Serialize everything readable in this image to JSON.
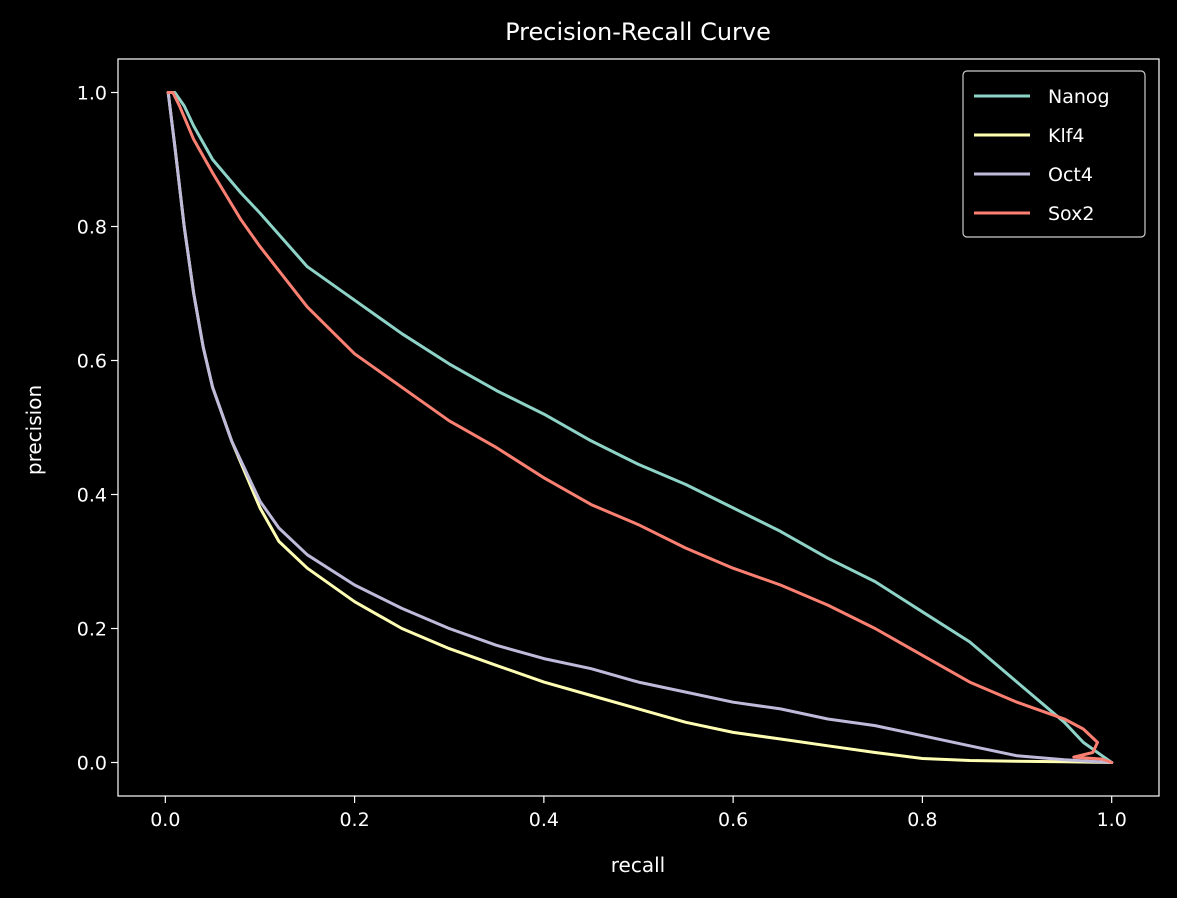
{
  "chart_data": {
    "type": "line",
    "title": "Precision-Recall Curve",
    "xlabel": "recall",
    "ylabel": "precision",
    "xlim": [
      -0.05,
      1.05
    ],
    "ylim": [
      -0.05,
      1.05
    ],
    "xticks": [
      "0.0",
      "0.2",
      "0.4",
      "0.6",
      "0.8",
      "1.0"
    ],
    "yticks": [
      "0.0",
      "0.2",
      "0.4",
      "0.6",
      "0.8",
      "1.0"
    ],
    "grid": false,
    "legend_position": "top-right",
    "background": "#000000",
    "series": [
      {
        "name": "Nanog",
        "color": "#8dd3c7",
        "x": [
          0.003,
          0.01,
          0.02,
          0.03,
          0.05,
          0.08,
          0.1,
          0.15,
          0.2,
          0.25,
          0.3,
          0.35,
          0.4,
          0.45,
          0.5,
          0.55,
          0.6,
          0.65,
          0.7,
          0.75,
          0.8,
          0.85,
          0.9,
          0.95,
          0.97,
          0.99,
          1.0
        ],
        "y": [
          1.0,
          1.0,
          0.98,
          0.95,
          0.9,
          0.85,
          0.82,
          0.74,
          0.69,
          0.64,
          0.595,
          0.555,
          0.52,
          0.48,
          0.445,
          0.415,
          0.38,
          0.345,
          0.305,
          0.27,
          0.225,
          0.18,
          0.12,
          0.06,
          0.03,
          0.01,
          0.0
        ]
      },
      {
        "name": "Klf4",
        "color": "#ffffb3",
        "x": [
          0.003,
          0.01,
          0.02,
          0.03,
          0.04,
          0.05,
          0.07,
          0.1,
          0.12,
          0.15,
          0.2,
          0.25,
          0.3,
          0.35,
          0.4,
          0.45,
          0.5,
          0.55,
          0.6,
          0.65,
          0.7,
          0.75,
          0.8,
          0.85,
          0.9,
          0.95,
          1.0
        ],
        "y": [
          1.0,
          0.92,
          0.8,
          0.7,
          0.62,
          0.56,
          0.48,
          0.38,
          0.33,
          0.29,
          0.24,
          0.2,
          0.17,
          0.145,
          0.12,
          0.1,
          0.08,
          0.06,
          0.045,
          0.035,
          0.025,
          0.015,
          0.006,
          0.003,
          0.002,
          0.001,
          0.0
        ]
      },
      {
        "name": "Oct4",
        "color": "#bebada",
        "x": [
          0.003,
          0.01,
          0.02,
          0.03,
          0.04,
          0.05,
          0.07,
          0.1,
          0.12,
          0.15,
          0.2,
          0.25,
          0.3,
          0.35,
          0.4,
          0.45,
          0.5,
          0.55,
          0.6,
          0.65,
          0.7,
          0.75,
          0.8,
          0.85,
          0.9,
          0.95,
          1.0
        ],
        "y": [
          1.0,
          0.92,
          0.8,
          0.7,
          0.62,
          0.56,
          0.48,
          0.39,
          0.35,
          0.31,
          0.265,
          0.23,
          0.2,
          0.175,
          0.155,
          0.14,
          0.12,
          0.105,
          0.09,
          0.08,
          0.065,
          0.055,
          0.04,
          0.025,
          0.01,
          0.004,
          0.0
        ]
      },
      {
        "name": "Sox2",
        "color": "#fb8072",
        "x": [
          0.003,
          0.008,
          0.015,
          0.03,
          0.05,
          0.08,
          0.1,
          0.15,
          0.2,
          0.25,
          0.3,
          0.35,
          0.4,
          0.45,
          0.5,
          0.55,
          0.6,
          0.65,
          0.7,
          0.75,
          0.8,
          0.85,
          0.9,
          0.93,
          0.95,
          0.97,
          0.985,
          0.98,
          0.96,
          0.99,
          1.0
        ],
        "y": [
          1.0,
          1.0,
          0.98,
          0.93,
          0.88,
          0.81,
          0.77,
          0.68,
          0.61,
          0.56,
          0.51,
          0.47,
          0.425,
          0.385,
          0.355,
          0.32,
          0.29,
          0.265,
          0.235,
          0.2,
          0.16,
          0.12,
          0.09,
          0.075,
          0.065,
          0.05,
          0.03,
          0.015,
          0.008,
          0.005,
          0.0
        ]
      }
    ]
  }
}
